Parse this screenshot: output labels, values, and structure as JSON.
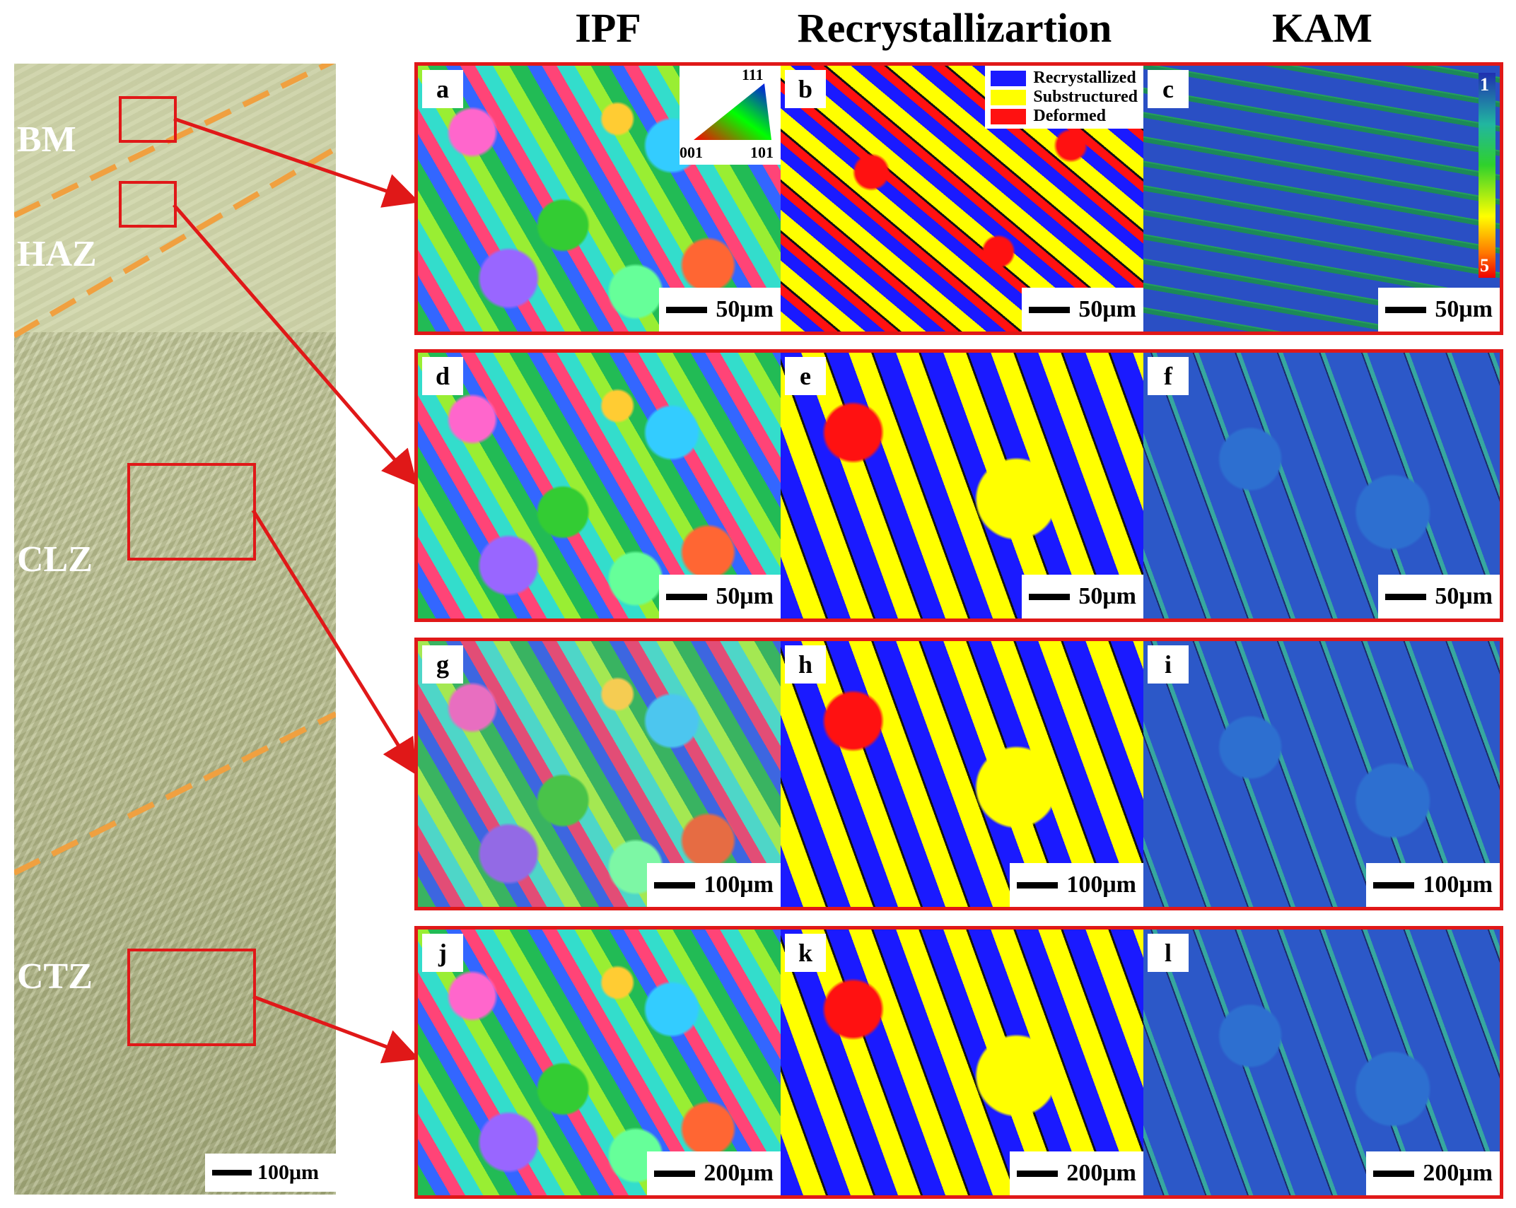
{
  "column_headers": [
    "IPF",
    "Recrystallizartion",
    "KAM"
  ],
  "micrograph": {
    "zones": [
      "BM",
      "HAZ",
      "CLZ",
      "CTZ"
    ],
    "scale_label": "100μm"
  },
  "panels": [
    {
      "letter": "a",
      "scale": "50μm"
    },
    {
      "letter": "b",
      "scale": "50μm"
    },
    {
      "letter": "c",
      "scale": "50μm"
    },
    {
      "letter": "d",
      "scale": "50μm"
    },
    {
      "letter": "e",
      "scale": "50μm"
    },
    {
      "letter": "f",
      "scale": "50μm"
    },
    {
      "letter": "g",
      "scale": "100μm"
    },
    {
      "letter": "h",
      "scale": "100μm"
    },
    {
      "letter": "i",
      "scale": "100μm"
    },
    {
      "letter": "j",
      "scale": "200μm"
    },
    {
      "letter": "k",
      "scale": "200μm"
    },
    {
      "letter": "l",
      "scale": "200μm"
    }
  ],
  "ipf_legend": {
    "top": "111",
    "left": "001",
    "right": "101"
  },
  "rex_legend": [
    {
      "label": "Recrystallized",
      "color": "#1a1aff"
    },
    {
      "label": "Substructured",
      "color": "#ffff00"
    },
    {
      "label": "Deformed",
      "color": "#ff1111"
    }
  ],
  "kam_colorbar": {
    "min": "1",
    "max": "5"
  },
  "colors": {
    "frame": "#e01818",
    "guide_dash": "#f0a040"
  }
}
